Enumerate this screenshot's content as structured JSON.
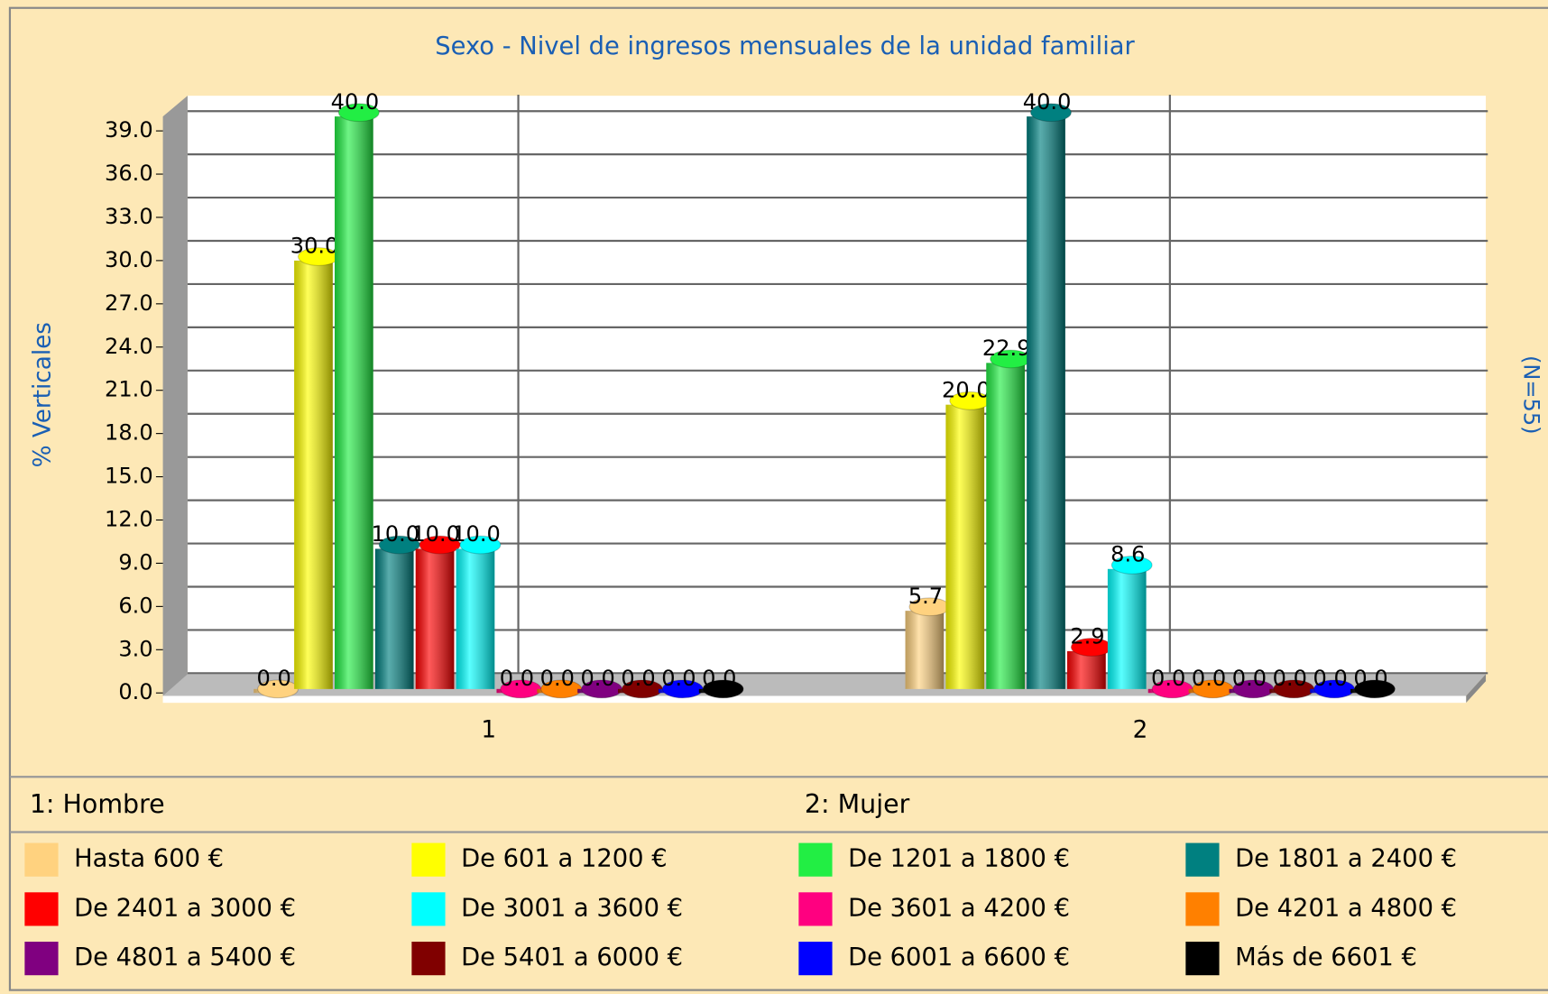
{
  "chart_data": {
    "type": "bar",
    "title": "Sexo - Nivel de ingresos mensuales de la unidad familiar",
    "y_label": "% Verticales",
    "right_label": "(N=55)",
    "categories": [
      "1",
      "2"
    ],
    "category_legend": [
      "1: Hombre",
      "2: Mujer"
    ],
    "ylim": [
      0,
      40
    ],
    "yticks": [
      {
        "value": 0,
        "label": "0.0"
      },
      {
        "value": 3,
        "label": "3.0"
      },
      {
        "value": 6,
        "label": "6.0"
      },
      {
        "value": 9,
        "label": "9.0"
      },
      {
        "value": 12,
        "label": "12.0"
      },
      {
        "value": 15,
        "label": "15.0"
      },
      {
        "value": 18,
        "label": "18.0"
      },
      {
        "value": 21,
        "label": "21.0"
      },
      {
        "value": 24,
        "label": "24.0"
      },
      {
        "value": 27,
        "label": "27.0"
      },
      {
        "value": 30,
        "label": "30.0"
      },
      {
        "value": 33,
        "label": "33.0"
      },
      {
        "value": 36,
        "label": "36.0"
      },
      {
        "value": 39,
        "label": "39.0"
      }
    ],
    "grid": true,
    "series": [
      {
        "name": "Hasta 600 €",
        "color": "#ffd27f",
        "values": [
          0,
          5.7
        ],
        "value_labels": [
          "0.0",
          "5.7"
        ]
      },
      {
        "name": "De 601 a 1200 €",
        "color": "#ffff00",
        "values": [
          30,
          20
        ],
        "value_labels": [
          "30.0",
          "20.0"
        ]
      },
      {
        "name": "De 1201 a 1800 €",
        "color": "#22ee44",
        "values": [
          40,
          22.9
        ],
        "value_labels": [
          "40.0",
          "22.9"
        ]
      },
      {
        "name": "De 1801 a 2400 €",
        "color": "#008080",
        "values": [
          10,
          40
        ],
        "value_labels": [
          "10.0",
          "40.0"
        ]
      },
      {
        "name": "De 2401 a 3000 €",
        "color": "#ff0000",
        "values": [
          10,
          2.9
        ],
        "value_labels": [
          "10.0",
          "2.9"
        ]
      },
      {
        "name": "De 3001 a 3600 €",
        "color": "#00ffff",
        "values": [
          10,
          8.6
        ],
        "value_labels": [
          "10.0",
          "8.6"
        ]
      },
      {
        "name": "De 3601 a 4200 €",
        "color": "#ff0080",
        "values": [
          0,
          0
        ],
        "value_labels": [
          "0.0",
          "0.0"
        ]
      },
      {
        "name": "De 4201 a 4800 €",
        "color": "#ff8000",
        "values": [
          0,
          0
        ],
        "value_labels": [
          "0.0",
          "0.0"
        ]
      },
      {
        "name": "De 4801 a 5400 €",
        "color": "#800080",
        "values": [
          0,
          0
        ],
        "value_labels": [
          "0.0",
          "0.0"
        ]
      },
      {
        "name": "De 5401 a 6000 €",
        "color": "#800000",
        "values": [
          0,
          0
        ],
        "value_labels": [
          "0.0",
          "0.0"
        ]
      },
      {
        "name": "De 6001 a 6600 €",
        "color": "#0000ff",
        "values": [
          0,
          0
        ],
        "value_labels": [
          "0.0",
          "0.0"
        ]
      },
      {
        "name": "Más de 6601 €",
        "color": "#000000",
        "values": [
          0,
          0
        ],
        "value_labels": [
          "0.0",
          "0.0"
        ]
      }
    ]
  }
}
